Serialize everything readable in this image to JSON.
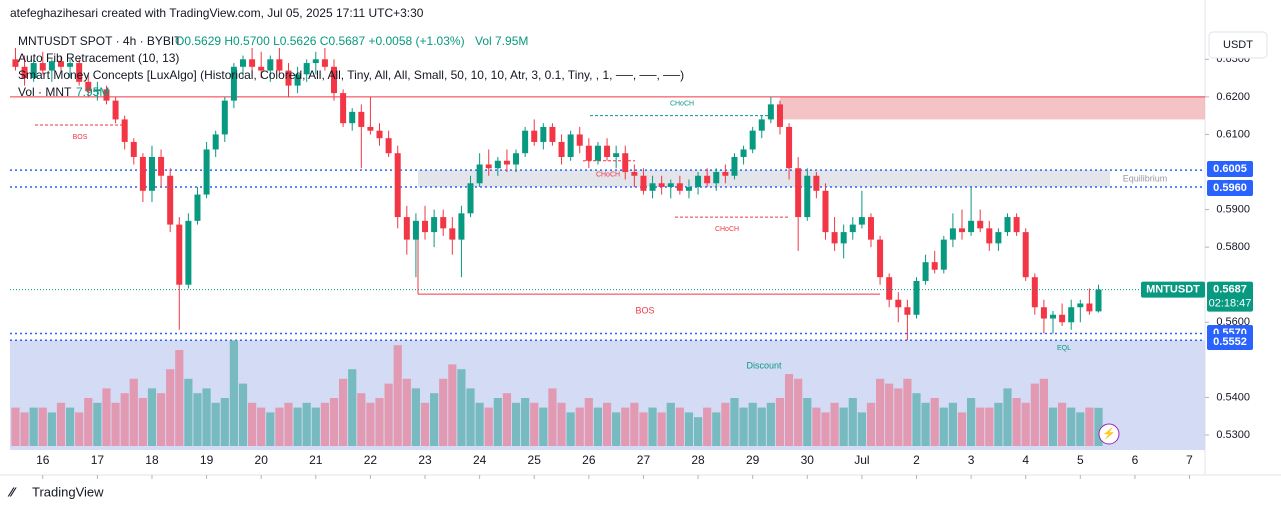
{
  "header": {
    "author": "atefeghazihesari created with TradingView.com, Jul 05, 2025 17:11 UTC+3:30",
    "symbol": "MNTUSDT SPOT · 4h · BYBIT",
    "ohlc": "O0.5629 H0.5700 L0.5626 C0.5687 +0.0058 (+1.03%)",
    "vol": "Vol 7.95M",
    "indicators": [
      "Auto Fib Retracement (10, 13)",
      "Smart Money Concepts [LuxAlgo] (Historical, Colored, All, All, Tiny, All, All, Small, 50, 10, 10, Atr, 3, 0.1, Tiny, , 1, ──, ──, ──)"
    ],
    "vol_legend": "Vol · MNT",
    "vol_legend_value": "7.95M",
    "currency": "USDT",
    "brand": "TradingView"
  },
  "chart_data": {
    "type": "candlestick",
    "up_color": "#089981",
    "down_color": "#f23645",
    "xlim": [
      -0.6,
      130.7
    ],
    "ylim": [
      0.526,
      0.6378
    ],
    "xticks": [
      {
        "value": 3,
        "label": "16"
      },
      {
        "value": 9,
        "label": "17"
      },
      {
        "value": 15,
        "label": "18"
      },
      {
        "value": 21,
        "label": "19"
      },
      {
        "value": 27,
        "label": "20"
      },
      {
        "value": 33,
        "label": "21"
      },
      {
        "value": 39,
        "label": "22"
      },
      {
        "value": 45,
        "label": "23"
      },
      {
        "value": 51,
        "label": "24"
      },
      {
        "value": 57,
        "label": "25"
      },
      {
        "value": 63,
        "label": "26"
      },
      {
        "value": 69,
        "label": "27"
      },
      {
        "value": 75,
        "label": "28"
      },
      {
        "value": 81,
        "label": "29"
      },
      {
        "value": 87,
        "label": "30"
      },
      {
        "value": 93,
        "label": "Jul"
      },
      {
        "value": 99,
        "label": "2"
      },
      {
        "value": 105,
        "label": "3"
      },
      {
        "value": 111,
        "label": "4"
      },
      {
        "value": 117,
        "label": "5"
      },
      {
        "value": 123,
        "label": "6"
      },
      {
        "value": 129,
        "label": "7"
      }
    ],
    "yticks": [
      {
        "value": 0.63,
        "label": "0.6300"
      },
      {
        "value": 0.62,
        "label": "0.6200"
      },
      {
        "value": 0.61,
        "label": "0.6100"
      },
      {
        "value": 0.59,
        "label": "0.5900"
      },
      {
        "value": 0.58,
        "label": "0.5800"
      },
      {
        "value": 0.56,
        "label": "0.5600"
      },
      {
        "value": 0.54,
        "label": "0.5400"
      },
      {
        "value": 0.53,
        "label": "0.5300"
      }
    ],
    "candles": [
      [
        0.63,
        0.633,
        0.627,
        0.628
      ],
      [
        0.628,
        0.631,
        0.623,
        0.625
      ],
      [
        0.625,
        0.63,
        0.624,
        0.629
      ],
      [
        0.629,
        0.632,
        0.626,
        0.627
      ],
      [
        0.627,
        0.63,
        0.624,
        0.6295
      ],
      [
        0.6295,
        0.631,
        0.627,
        0.628
      ],
      [
        0.628,
        0.63,
        0.625,
        0.629
      ],
      [
        0.629,
        0.63,
        0.623,
        0.624
      ],
      [
        0.624,
        0.626,
        0.62,
        0.6215
      ],
      [
        0.6215,
        0.624,
        0.619,
        0.622
      ],
      [
        0.622,
        0.623,
        0.618,
        0.619
      ],
      [
        0.619,
        0.62,
        0.613,
        0.614
      ],
      [
        0.614,
        0.615,
        0.606,
        0.608
      ],
      [
        0.608,
        0.609,
        0.602,
        0.604
      ],
      [
        0.604,
        0.605,
        0.592,
        0.595
      ],
      [
        0.595,
        0.607,
        0.592,
        0.604
      ],
      [
        0.604,
        0.606,
        0.596,
        0.599
      ],
      [
        0.599,
        0.601,
        0.584,
        0.586
      ],
      [
        0.586,
        0.588,
        0.558,
        0.57
      ],
      [
        0.57,
        0.589,
        0.569,
        0.587
      ],
      [
        0.587,
        0.596,
        0.586,
        0.594
      ],
      [
        0.594,
        0.608,
        0.593,
        0.606
      ],
      [
        0.606,
        0.611,
        0.604,
        0.61
      ],
      [
        0.61,
        0.62,
        0.608,
        0.619
      ],
      [
        0.619,
        0.629,
        0.617,
        0.628
      ],
      [
        0.628,
        0.631,
        0.625,
        0.63
      ],
      [
        0.63,
        0.633,
        0.627,
        0.628
      ],
      [
        0.628,
        0.632,
        0.625,
        0.627
      ],
      [
        0.627,
        0.631,
        0.624,
        0.63
      ],
      [
        0.63,
        0.633,
        0.626,
        0.627
      ],
      [
        0.627,
        0.629,
        0.62,
        0.623
      ],
      [
        0.623,
        0.628,
        0.621,
        0.626
      ],
      [
        0.626,
        0.63,
        0.624,
        0.629
      ],
      [
        0.629,
        0.632,
        0.626,
        0.63
      ],
      [
        0.63,
        0.633,
        0.627,
        0.628
      ],
      [
        0.628,
        0.63,
        0.619,
        0.621
      ],
      [
        0.621,
        0.622,
        0.612,
        0.613
      ],
      [
        0.613,
        0.617,
        0.611,
        0.616
      ],
      [
        0.616,
        0.618,
        0.601,
        0.612
      ],
      [
        0.612,
        0.62,
        0.61,
        0.611
      ],
      [
        0.611,
        0.613,
        0.607,
        0.609
      ],
      [
        0.609,
        0.611,
        0.604,
        0.605
      ],
      [
        0.605,
        0.607,
        0.585,
        0.588
      ],
      [
        0.588,
        0.591,
        0.578,
        0.582
      ],
      [
        0.582,
        0.589,
        0.572,
        0.587
      ],
      [
        0.587,
        0.591,
        0.582,
        0.584
      ],
      [
        0.584,
        0.59,
        0.58,
        0.588
      ],
      [
        0.588,
        0.59,
        0.583,
        0.585
      ],
      [
        0.585,
        0.588,
        0.578,
        0.582
      ],
      [
        0.582,
        0.591,
        0.572,
        0.589
      ],
      [
        0.589,
        0.599,
        0.588,
        0.597
      ],
      [
        0.597,
        0.605,
        0.596,
        0.602
      ],
      [
        0.602,
        0.606,
        0.599,
        0.601
      ],
      [
        0.601,
        0.604,
        0.599,
        0.603
      ],
      [
        0.603,
        0.606,
        0.6,
        0.602
      ],
      [
        0.602,
        0.606,
        0.6,
        0.605
      ],
      [
        0.605,
        0.612,
        0.604,
        0.611
      ],
      [
        0.611,
        0.614,
        0.607,
        0.608
      ],
      [
        0.608,
        0.613,
        0.606,
        0.612
      ],
      [
        0.612,
        0.613,
        0.607,
        0.608
      ],
      [
        0.608,
        0.61,
        0.602,
        0.604
      ],
      [
        0.604,
        0.611,
        0.603,
        0.61
      ],
      [
        0.61,
        0.612,
        0.605,
        0.607
      ],
      [
        0.607,
        0.609,
        0.601,
        0.603
      ],
      [
        0.603,
        0.608,
        0.602,
        0.607
      ],
      [
        0.607,
        0.609,
        0.603,
        0.604
      ],
      [
        0.604,
        0.607,
        0.601,
        0.605
      ],
      [
        0.605,
        0.607,
        0.598,
        0.6
      ],
      [
        0.6,
        0.602,
        0.596,
        0.599
      ],
      [
        0.599,
        0.601,
        0.594,
        0.595
      ],
      [
        0.595,
        0.599,
        0.593,
        0.597
      ],
      [
        0.597,
        0.599,
        0.594,
        0.596
      ],
      [
        0.596,
        0.598,
        0.593,
        0.597
      ],
      [
        0.597,
        0.599,
        0.594,
        0.595
      ],
      [
        0.595,
        0.598,
        0.593,
        0.596
      ],
      [
        0.596,
        0.6,
        0.594,
        0.599
      ],
      [
        0.599,
        0.601,
        0.596,
        0.597
      ],
      [
        0.597,
        0.601,
        0.595,
        0.6
      ],
      [
        0.6,
        0.602,
        0.597,
        0.599
      ],
      [
        0.599,
        0.605,
        0.598,
        0.604
      ],
      [
        0.604,
        0.607,
        0.602,
        0.606
      ],
      [
        0.606,
        0.612,
        0.605,
        0.611
      ],
      [
        0.611,
        0.615,
        0.609,
        0.614
      ],
      [
        0.614,
        0.62,
        0.613,
        0.618
      ],
      [
        0.618,
        0.619,
        0.61,
        0.612
      ],
      [
        0.612,
        0.613,
        0.598,
        0.601
      ],
      [
        0.601,
        0.604,
        0.579,
        0.588
      ],
      [
        0.588,
        0.601,
        0.587,
        0.599
      ],
      [
        0.599,
        0.6,
        0.593,
        0.595
      ],
      [
        0.595,
        0.597,
        0.582,
        0.584
      ],
      [
        0.584,
        0.588,
        0.579,
        0.581
      ],
      [
        0.581,
        0.586,
        0.577,
        0.584
      ],
      [
        0.584,
        0.588,
        0.582,
        0.586
      ],
      [
        0.586,
        0.595,
        0.585,
        0.588
      ],
      [
        0.588,
        0.589,
        0.58,
        0.582
      ],
      [
        0.582,
        0.583,
        0.57,
        0.572
      ],
      [
        0.572,
        0.573,
        0.564,
        0.566
      ],
      [
        0.566,
        0.568,
        0.56,
        0.564
      ],
      [
        0.564,
        0.566,
        0.5552,
        0.562
      ],
      [
        0.562,
        0.572,
        0.561,
        0.571
      ],
      [
        0.571,
        0.578,
        0.57,
        0.576
      ],
      [
        0.576,
        0.579,
        0.573,
        0.574
      ],
      [
        0.574,
        0.583,
        0.573,
        0.582
      ],
      [
        0.582,
        0.589,
        0.58,
        0.585
      ],
      [
        0.585,
        0.59,
        0.582,
        0.584
      ],
      [
        0.584,
        0.596,
        0.583,
        0.587
      ],
      [
        0.587,
        0.59,
        0.584,
        0.585
      ],
      [
        0.585,
        0.587,
        0.579,
        0.581
      ],
      [
        0.581,
        0.585,
        0.579,
        0.584
      ],
      [
        0.584,
        0.589,
        0.583,
        0.588
      ],
      [
        0.588,
        0.589,
        0.583,
        0.584
      ],
      [
        0.584,
        0.585,
        0.571,
        0.572
      ],
      [
        0.572,
        0.573,
        0.562,
        0.564
      ],
      [
        0.564,
        0.566,
        0.557,
        0.561
      ],
      [
        0.561,
        0.563,
        0.557,
        0.562
      ],
      [
        0.562,
        0.565,
        0.559,
        0.56
      ],
      [
        0.56,
        0.566,
        0.558,
        0.564
      ],
      [
        0.564,
        0.566,
        0.56,
        0.565
      ],
      [
        0.565,
        0.569,
        0.562,
        0.5629
      ],
      [
        0.5629,
        0.57,
        0.5626,
        0.5687
      ]
    ],
    "volume": {
      "name": "Vol · MNT",
      "values": [
        8,
        7,
        8,
        8,
        7,
        9,
        8,
        7,
        10,
        9,
        12,
        9,
        11,
        14,
        10,
        12,
        11,
        16,
        20,
        14,
        11,
        12,
        9,
        10,
        22,
        13,
        9,
        8,
        7,
        8,
        9,
        8,
        9,
        8,
        9,
        10,
        14,
        16,
        11,
        9,
        10,
        13,
        21,
        14,
        12,
        9,
        11,
        14,
        17,
        16,
        12,
        9,
        8,
        10,
        11,
        9,
        10,
        9,
        8,
        12,
        9,
        7,
        8,
        10,
        8,
        9,
        7,
        8,
        9,
        7,
        8,
        7,
        9,
        8,
        7,
        6,
        8,
        7,
        9,
        10,
        8,
        9,
        8,
        9,
        10,
        15,
        14,
        10,
        8,
        7,
        9,
        8,
        10,
        7,
        9,
        14,
        13,
        12,
        14,
        11,
        9,
        10,
        8,
        9,
        7,
        10,
        8,
        8,
        9,
        12,
        10,
        9,
        13,
        14,
        8,
        9,
        8,
        7,
        8,
        7.95
      ]
    },
    "price_labels": [
      {
        "value": 0.6005,
        "label": "0.6005"
      },
      {
        "value": 0.596,
        "label": "0.5960"
      },
      {
        "value": 0.557,
        "label": "0.5570"
      },
      {
        "value": 0.5552,
        "label": "0.5552"
      }
    ],
    "last": {
      "name": "MNTUSDT",
      "value": 0.5687,
      "label": "0.5687",
      "countdown": "02:18:47"
    },
    "zones": [
      {
        "label": "Equilibrium",
        "from": 0.596,
        "to": 0.6005,
        "color": "#d1d4dc"
      },
      {
        "label": "Discount",
        "from": 0.526,
        "to": 0.5552,
        "color": "#c5cff2"
      }
    ],
    "premium": {
      "from": 0.614,
      "to": 0.62,
      "color": "#f0b4b8"
    },
    "structures": [
      {
        "label": "BOS",
        "value": 0.6125,
        "color": "#f23645"
      },
      {
        "label": "CHoCH",
        "value": 0.615,
        "color": "#089981"
      },
      {
        "label": "CHoCH",
        "value": 0.603,
        "color": "#f23645"
      },
      {
        "label": "CHoCH",
        "value": 0.588,
        "color": "#f23645"
      },
      {
        "label": "BOS",
        "value": 0.5675,
        "color": "#f23645"
      }
    ],
    "eql": {
      "label": "EQL",
      "value": 0.5552
    }
  }
}
